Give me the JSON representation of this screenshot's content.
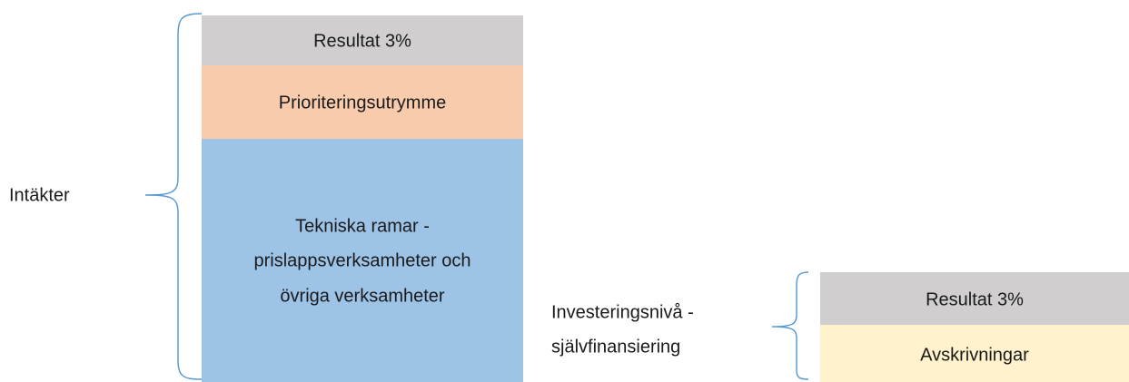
{
  "left": {
    "label": "Intäkter",
    "blocks": [
      {
        "lines": [
          "Resultat 3%"
        ]
      },
      {
        "lines": [
          "Prioriteringsutrymme"
        ]
      },
      {
        "lines": [
          "Tekniska ramar -",
          "prislappsverksamheter och",
          "övriga verksamheter"
        ]
      }
    ]
  },
  "right": {
    "label_lines": [
      "Investeringsnivå -",
      "självfinansiering"
    ],
    "blocks": [
      {
        "lines": [
          "Resultat 3%"
        ]
      },
      {
        "lines": [
          "Avskrivningar"
        ]
      }
    ]
  }
}
